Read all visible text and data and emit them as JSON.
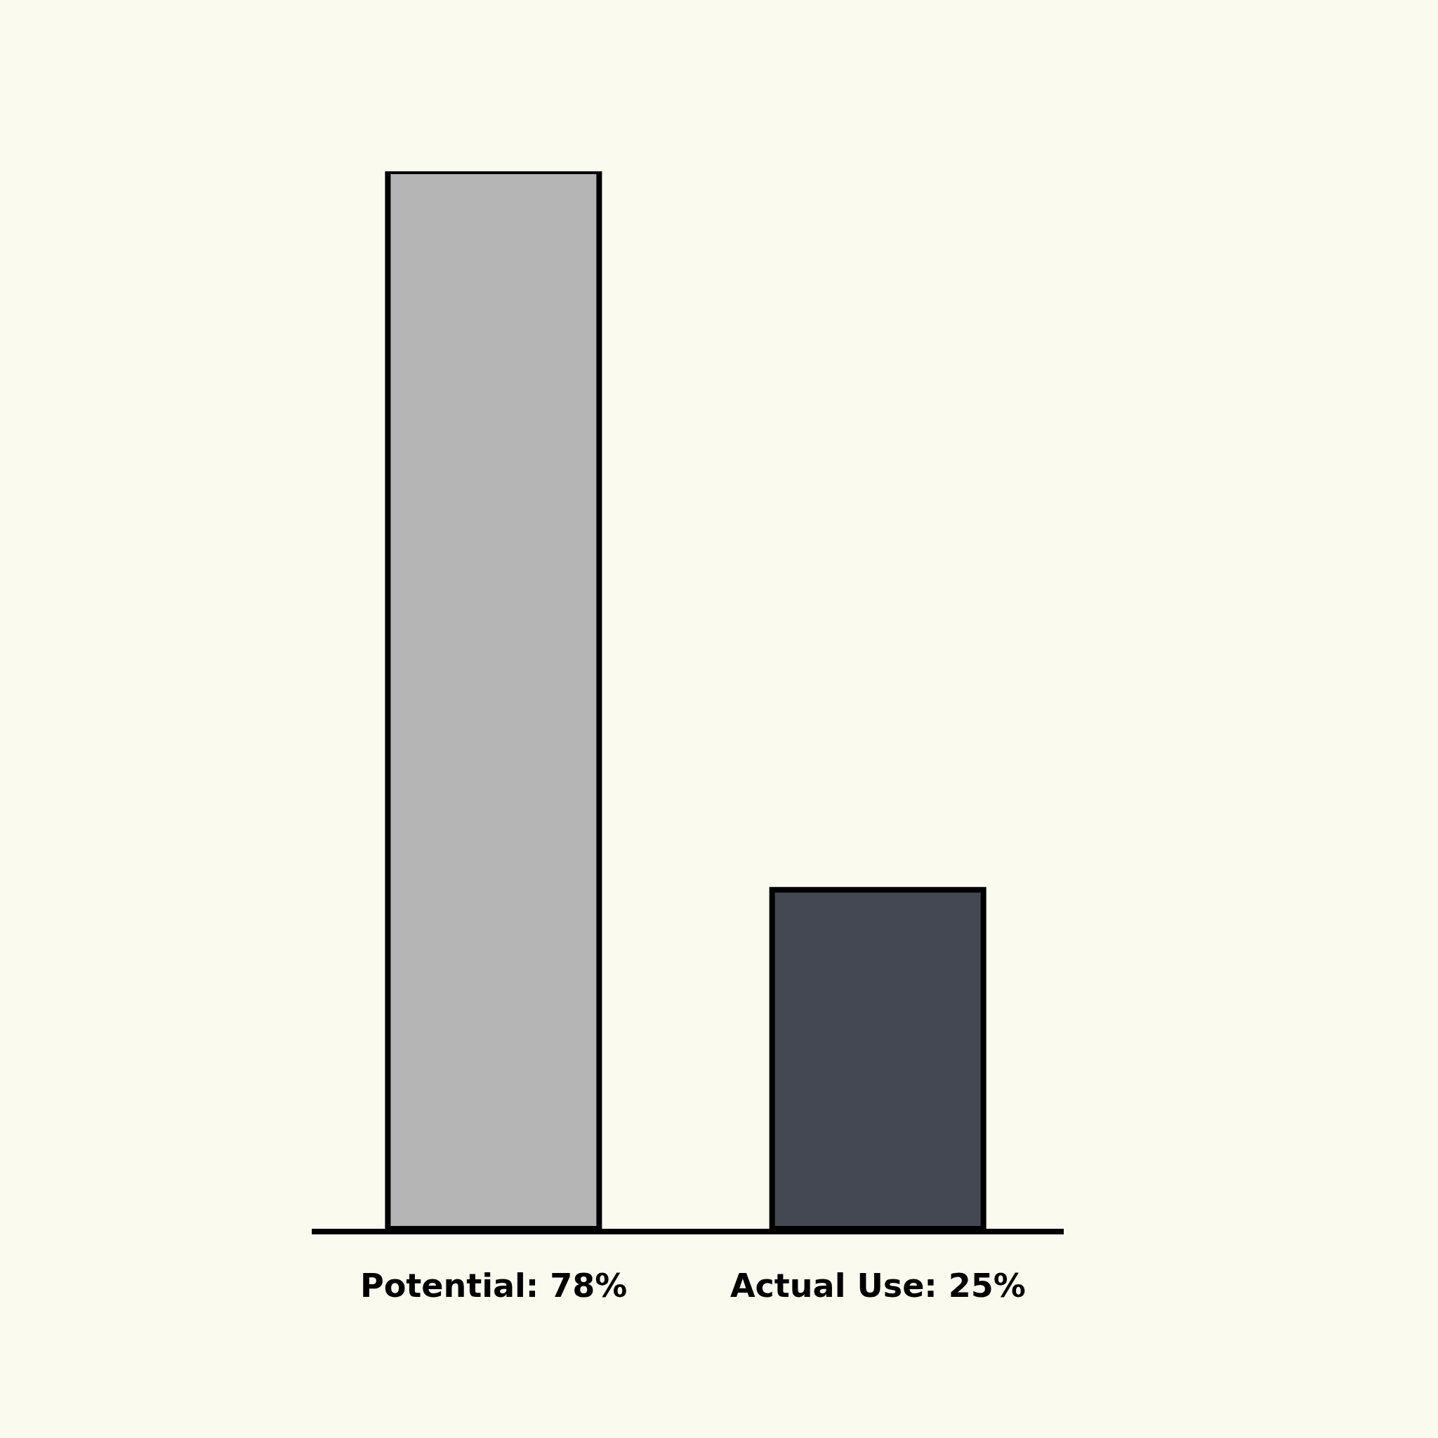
{
  "chart_data": {
    "type": "bar",
    "categories": [
      null,
      null
    ],
    "values": [
      78,
      25
    ],
    "value_labels": [
      "Potential: 78%",
      "Actual Use: 25%"
    ],
    "colors": [
      "#b5b5b5",
      "#434852"
    ]
  }
}
